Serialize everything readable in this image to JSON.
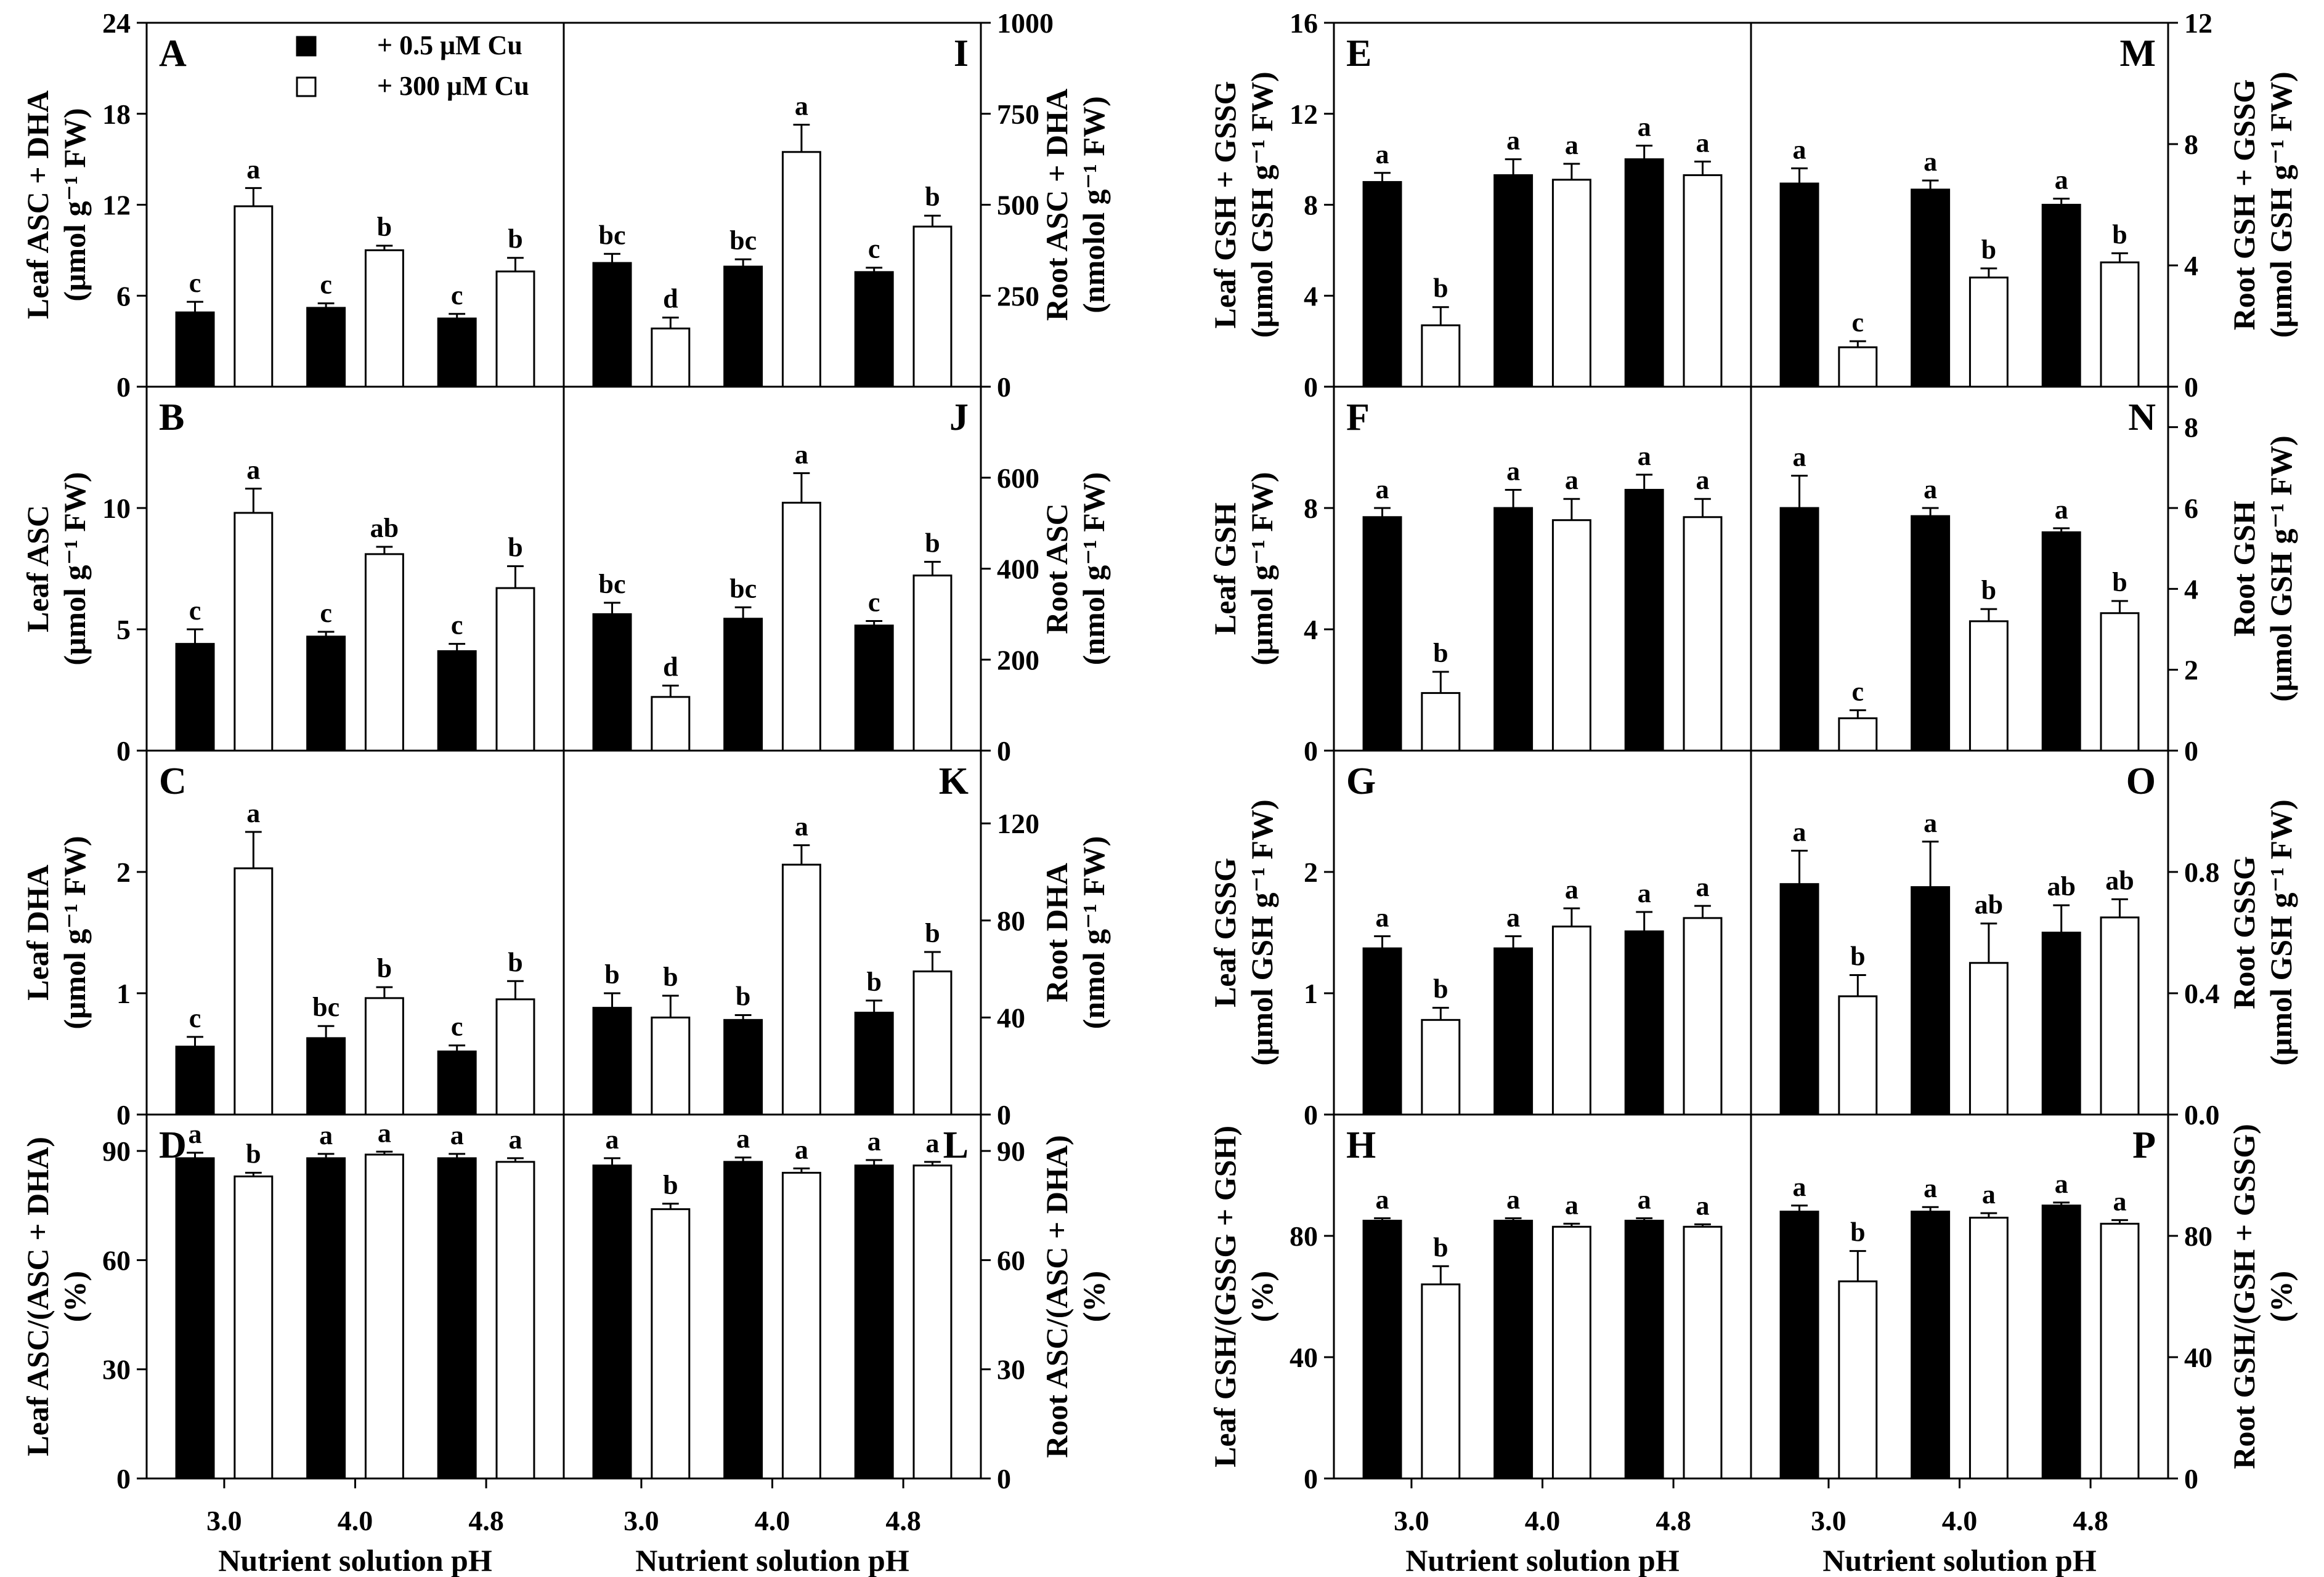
{
  "figure": {
    "legend": [
      {
        "label": "+ 0.5 μM Cu",
        "fill": "#000000"
      },
      {
        "label": "+ 300 μM Cu",
        "fill": "#ffffff"
      }
    ],
    "xlabel": "Nutrient solution pH",
    "categories": [
      "3.0",
      "4.0",
      "4.8"
    ]
  },
  "chart_data": [
    {
      "id": "A",
      "type": "bar",
      "ylabel": [
        "Leaf ASC + DHA",
        "(μmol g⁻¹ FW)"
      ],
      "ylim": [
        0,
        24
      ],
      "yticks": [
        "0",
        "6",
        "12",
        "18",
        "24"
      ],
      "series": [
        {
          "name": "+ 0.5 μM Cu",
          "values": [
            4.9,
            5.2,
            4.5
          ],
          "errors": [
            0.7,
            0.3,
            0.3
          ],
          "letters": [
            "c",
            "c",
            "c"
          ]
        },
        {
          "name": "+ 300 μM Cu",
          "values": [
            11.9,
            9.0,
            7.6
          ],
          "errors": [
            1.2,
            0.3,
            0.9
          ],
          "letters": [
            "a",
            "b",
            "b"
          ]
        }
      ]
    },
    {
      "id": "B",
      "type": "bar",
      "ylabel": [
        "Leaf ASC",
        "(μmol g⁻¹ FW)"
      ],
      "ylim": [
        0,
        15
      ],
      "yticks": [
        "0",
        "5",
        "10"
      ],
      "series": [
        {
          "name": "+ 0.5 μM Cu",
          "values": [
            4.4,
            4.7,
            4.1
          ],
          "errors": [
            0.6,
            0.2,
            0.3
          ],
          "letters": [
            "c",
            "c",
            "c"
          ]
        },
        {
          "name": "+ 300 μM Cu",
          "values": [
            9.8,
            8.1,
            6.7
          ],
          "errors": [
            1.0,
            0.3,
            0.9
          ],
          "letters": [
            "a",
            "ab",
            "b"
          ]
        }
      ]
    },
    {
      "id": "C",
      "type": "bar",
      "ylabel": [
        "Leaf DHA",
        "(μmol g⁻¹ FW)"
      ],
      "ylim": [
        0,
        3
      ],
      "yticks": [
        "0",
        "1",
        "2"
      ],
      "series": [
        {
          "name": "+ 0.5 μM Cu",
          "values": [
            0.56,
            0.63,
            0.52
          ],
          "errors": [
            0.08,
            0.1,
            0.05
          ],
          "letters": [
            "c",
            "bc",
            "c"
          ]
        },
        {
          "name": "+ 300 μM Cu",
          "values": [
            2.03,
            0.96,
            0.95
          ],
          "errors": [
            0.3,
            0.09,
            0.15
          ],
          "letters": [
            "a",
            "b",
            "b"
          ]
        }
      ]
    },
    {
      "id": "D",
      "type": "bar",
      "ylabel": [
        "Leaf ASC/(ASC + DHA)",
        "(%)"
      ],
      "ylim": [
        0,
        100
      ],
      "yticks": [
        "0",
        "30",
        "60",
        "90"
      ],
      "series": [
        {
          "name": "+ 0.5 μM Cu",
          "values": [
            88,
            88,
            88
          ],
          "errors": [
            1.5,
            1.2,
            1.2
          ],
          "letters": [
            "a",
            "a",
            "a"
          ]
        },
        {
          "name": "+ 300 μM Cu",
          "values": [
            83,
            89,
            87
          ],
          "errors": [
            1.0,
            0.8,
            1.0
          ],
          "letters": [
            "b",
            "a",
            "a"
          ]
        }
      ]
    },
    {
      "id": "I",
      "type": "bar",
      "ylabel": [
        "Root ASC + DHA",
        "(nmolol g⁻¹ FW)"
      ],
      "ylim": [
        0,
        1000
      ],
      "yticks": [
        "0",
        "250",
        "500",
        "750",
        "1000"
      ],
      "series": [
        {
          "name": "+ 0.5 μM Cu",
          "values": [
            340,
            330,
            315
          ],
          "errors": [
            25,
            20,
            12
          ],
          "letters": [
            "bc",
            "bc",
            "c"
          ]
        },
        {
          "name": "+ 300 μM Cu",
          "values": [
            160,
            645,
            440
          ],
          "errors": [
            30,
            75,
            30
          ],
          "letters": [
            "d",
            "a",
            "b"
          ]
        }
      ]
    },
    {
      "id": "J",
      "type": "bar",
      "ylabel": [
        "Root ASC",
        "(nmol g⁻¹ FW)"
      ],
      "ylim": [
        0,
        800
      ],
      "yticks": [
        "0",
        "200",
        "400",
        "600"
      ],
      "series": [
        {
          "name": "+ 0.5 μM Cu",
          "values": [
            300,
            290,
            275
          ],
          "errors": [
            25,
            25,
            10
          ],
          "letters": [
            "bc",
            "bc",
            "c"
          ]
        },
        {
          "name": "+ 300 μM Cu",
          "values": [
            118,
            545,
            385
          ],
          "errors": [
            25,
            65,
            30
          ],
          "letters": [
            "d",
            "a",
            "b"
          ]
        }
      ]
    },
    {
      "id": "K",
      "type": "bar",
      "ylabel": [
        "Root DHA",
        "(nmol g⁻¹ FW)"
      ],
      "ylim": [
        0,
        150
      ],
      "yticks": [
        "0",
        "40",
        "80",
        "120"
      ],
      "series": [
        {
          "name": "+ 0.5 μM Cu",
          "values": [
            44,
            39,
            42
          ],
          "errors": [
            6,
            2,
            5
          ],
          "letters": [
            "b",
            "b",
            "b"
          ]
        },
        {
          "name": "+ 300 μM Cu",
          "values": [
            40,
            103,
            59
          ],
          "errors": [
            9,
            8,
            8
          ],
          "letters": [
            "b",
            "a",
            "b"
          ]
        }
      ]
    },
    {
      "id": "L",
      "type": "bar",
      "ylabel": [
        "Root ASC/(ASC + DHA)",
        "(%)"
      ],
      "ylim": [
        0,
        100
      ],
      "yticks": [
        "0",
        "30",
        "60",
        "90"
      ],
      "series": [
        {
          "name": "+ 0.5 μM Cu",
          "values": [
            86,
            87,
            86
          ],
          "errors": [
            2,
            1.2,
            1.5
          ],
          "letters": [
            "a",
            "a",
            "a"
          ]
        },
        {
          "name": "+ 300 μM Cu",
          "values": [
            74,
            84,
            86
          ],
          "errors": [
            1.5,
            1.2,
            1.0
          ],
          "letters": [
            "b",
            "a",
            "a"
          ]
        }
      ]
    },
    {
      "id": "E",
      "type": "bar",
      "ylabel": [
        "Leaf GSH + GSSG",
        "(μmol GSH g⁻¹ FW)"
      ],
      "ylim": [
        0,
        16
      ],
      "yticks": [
        "0",
        "4",
        "8",
        "12",
        "16"
      ],
      "series": [
        {
          "name": "+ 0.5 μM Cu",
          "values": [
            9.0,
            9.3,
            10.0
          ],
          "errors": [
            0.4,
            0.7,
            0.6
          ],
          "letters": [
            "a",
            "a",
            "a"
          ]
        },
        {
          "name": "+ 300 μM Cu",
          "values": [
            2.7,
            9.1,
            9.3
          ],
          "errors": [
            0.8,
            0.7,
            0.6
          ],
          "letters": [
            "b",
            "a",
            "a"
          ]
        }
      ]
    },
    {
      "id": "F",
      "type": "bar",
      "ylabel": [
        "Leaf GSH",
        "(μmol g⁻¹ FW)"
      ],
      "ylim": [
        0,
        12
      ],
      "yticks": [
        "0",
        "4",
        "8"
      ],
      "series": [
        {
          "name": "+ 0.5 μM Cu",
          "values": [
            7.7,
            8.0,
            8.6
          ],
          "errors": [
            0.3,
            0.6,
            0.5
          ],
          "letters": [
            "a",
            "a",
            "a"
          ]
        },
        {
          "name": "+ 300 μM Cu",
          "values": [
            1.9,
            7.6,
            7.7
          ],
          "errors": [
            0.7,
            0.7,
            0.6
          ],
          "letters": [
            "b",
            "a",
            "a"
          ]
        }
      ]
    },
    {
      "id": "G",
      "type": "bar",
      "ylabel": [
        "Leaf GSSG",
        "(μmol GSH g⁻¹ FW)"
      ],
      "ylim": [
        0,
        3
      ],
      "yticks": [
        "0",
        "1",
        "2"
      ],
      "series": [
        {
          "name": "+ 0.5 μM Cu",
          "values": [
            1.37,
            1.37,
            1.51
          ],
          "errors": [
            0.1,
            0.1,
            0.16
          ],
          "letters": [
            "a",
            "a",
            "a"
          ]
        },
        {
          "name": "+ 300 μM Cu",
          "values": [
            0.78,
            1.55,
            1.62
          ],
          "errors": [
            0.1,
            0.15,
            0.1
          ],
          "letters": [
            "b",
            "a",
            "a"
          ]
        }
      ]
    },
    {
      "id": "H",
      "type": "bar",
      "ylabel": [
        "Leaf GSH/(GSSG + GSH)",
        "(%)"
      ],
      "ylim": [
        0,
        120
      ],
      "yticks": [
        "0",
        "40",
        "80"
      ],
      "series": [
        {
          "name": "+ 0.5 μM Cu",
          "values": [
            85,
            85,
            85
          ],
          "errors": [
            0.8,
            0.8,
            0.8
          ],
          "letters": [
            "a",
            "a",
            "a"
          ]
        },
        {
          "name": "+ 300 μM Cu",
          "values": [
            64,
            83,
            83
          ],
          "errors": [
            6,
            1,
            0.8
          ],
          "letters": [
            "b",
            "a",
            "a"
          ]
        }
      ]
    },
    {
      "id": "M",
      "type": "bar",
      "ylabel": [
        "Root GSH + GSSG",
        "(μmol GSH g⁻¹ FW)"
      ],
      "ylim": [
        0,
        12
      ],
      "yticks": [
        "0",
        "4",
        "8",
        "12"
      ],
      "series": [
        {
          "name": "+ 0.5 μM Cu",
          "values": [
            6.7,
            6.5,
            6.0
          ],
          "errors": [
            0.5,
            0.3,
            0.2
          ],
          "letters": [
            "a",
            "a",
            "a"
          ]
        },
        {
          "name": "+ 300 μM Cu",
          "values": [
            1.3,
            3.6,
            4.1
          ],
          "errors": [
            0.2,
            0.3,
            0.3
          ],
          "letters": [
            "c",
            "b",
            "b"
          ]
        }
      ]
    },
    {
      "id": "N",
      "type": "bar",
      "ylabel": [
        "Root GSH",
        "(μmol GSH g⁻¹ FW)"
      ],
      "ylim": [
        0,
        9
      ],
      "yticks": [
        "0",
        "2",
        "4",
        "6",
        "8"
      ],
      "series": [
        {
          "name": "+ 0.5 μM Cu",
          "values": [
            6.0,
            5.8,
            5.4
          ],
          "errors": [
            0.8,
            0.2,
            0.1
          ],
          "letters": [
            "a",
            "a",
            "a"
          ]
        },
        {
          "name": "+ 300 μM Cu",
          "values": [
            0.8,
            3.2,
            3.4
          ],
          "errors": [
            0.2,
            0.3,
            0.3
          ],
          "letters": [
            "c",
            "b",
            "b"
          ]
        }
      ]
    },
    {
      "id": "O",
      "type": "bar",
      "ylabel": [
        "Root GSSG",
        "(μmol GSH g⁻¹ FW)"
      ],
      "ylim": [
        0,
        1.2
      ],
      "yticks": [
        "0.0",
        "0.4",
        "0.8"
      ],
      "series": [
        {
          "name": "+ 0.5 μM Cu",
          "values": [
            0.76,
            0.75,
            0.6
          ],
          "errors": [
            0.11,
            0.15,
            0.09
          ],
          "letters": [
            "a",
            "a",
            "ab"
          ]
        },
        {
          "name": "+ 300 μM Cu",
          "values": [
            0.39,
            0.5,
            0.65
          ],
          "errors": [
            0.07,
            0.13,
            0.06
          ],
          "letters": [
            "b",
            "ab",
            "ab"
          ]
        }
      ]
    },
    {
      "id": "P",
      "type": "bar",
      "ylabel": [
        "Root GSH/(GSH + GSSG)",
        "(%)"
      ],
      "ylim": [
        0,
        120
      ],
      "yticks": [
        "0",
        "40",
        "80"
      ],
      "series": [
        {
          "name": "+ 0.5 μM Cu",
          "values": [
            88,
            88,
            90
          ],
          "errors": [
            2,
            1.5,
            1
          ],
          "letters": [
            "a",
            "a",
            "a"
          ]
        },
        {
          "name": "+ 300 μM Cu",
          "values": [
            65,
            86,
            84
          ],
          "errors": [
            10,
            1.5,
            1.2
          ],
          "letters": [
            "b",
            "a",
            "a"
          ]
        }
      ]
    }
  ]
}
